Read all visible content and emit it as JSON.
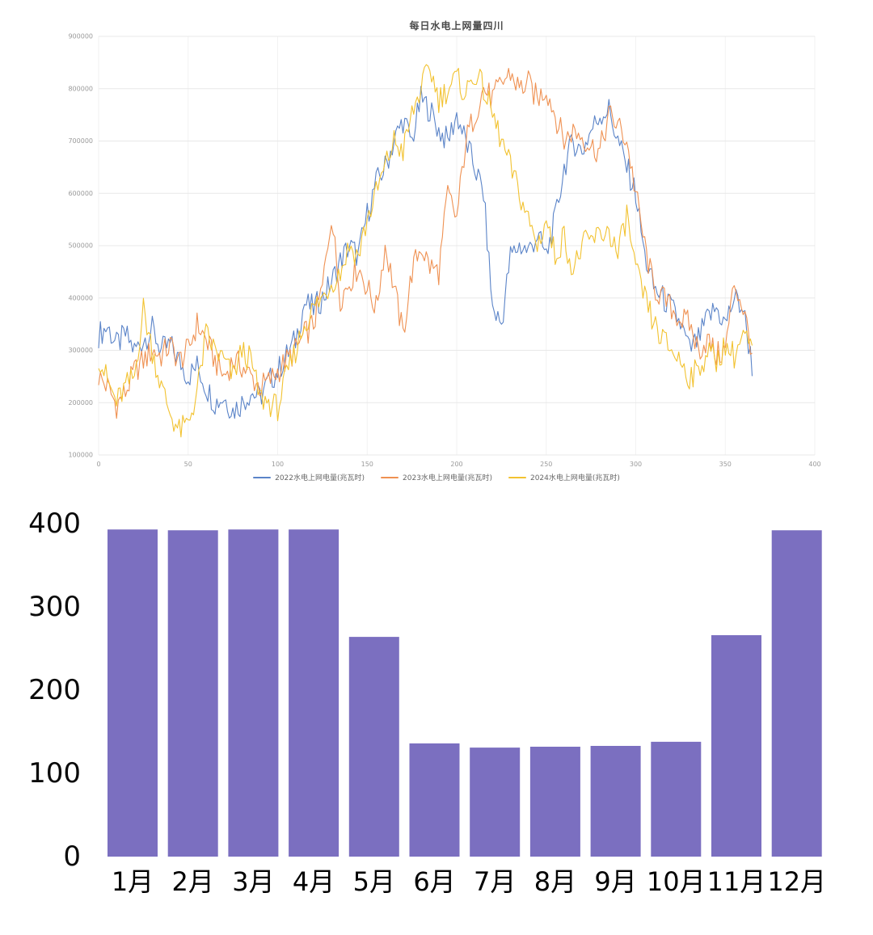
{
  "page": {
    "background": "#ffffff"
  },
  "chart_data": [
    {
      "type": "line",
      "title": "每日水电上网量四川",
      "xlabel": "",
      "ylabel": "",
      "x_range": [
        0,
        400
      ],
      "y_range": [
        100000,
        900000
      ],
      "x_ticks": [
        0,
        50,
        100,
        150,
        200,
        250,
        300,
        350,
        400
      ],
      "y_ticks": [
        100000,
        200000,
        300000,
        400000,
        500000,
        600000,
        700000,
        800000,
        900000
      ],
      "x_step_days": 5,
      "grid": true,
      "legend_position": "bottom",
      "series": [
        {
          "name": "2022水电上网电量(兆瓦时)",
          "color": "#5b84c8",
          "values": [
            330000,
            345000,
            310000,
            330000,
            300000,
            320000,
            340000,
            300000,
            310000,
            280000,
            250000,
            270000,
            230000,
            200000,
            210000,
            185000,
            200000,
            220000,
            210000,
            240000,
            260000,
            290000,
            320000,
            390000,
            380000,
            400000,
            430000,
            470000,
            500000,
            480000,
            560000,
            620000,
            650000,
            700000,
            740000,
            700000,
            780000,
            760000,
            720000,
            700000,
            750000,
            700000,
            650000,
            600000,
            380000,
            350000,
            480000,
            500000,
            490000,
            520000,
            480000,
            550000,
            650000,
            700000,
            680000,
            720000,
            750000,
            760000,
            700000,
            650000,
            600000,
            480000,
            420000,
            400000,
            380000,
            350000,
            300000,
            320000,
            360000,
            380000,
            350000,
            400000,
            380000,
            270000
          ]
        },
        {
          "name": "2023水电上网电量(兆瓦时)",
          "color": "#ef9152",
          "values": [
            250000,
            230000,
            195000,
            220000,
            260000,
            280000,
            300000,
            290000,
            310000,
            280000,
            300000,
            350000,
            320000,
            280000,
            250000,
            280000,
            270000,
            250000,
            230000,
            240000,
            260000,
            280000,
            300000,
            330000,
            350000,
            420000,
            560000,
            400000,
            430000,
            460000,
            420000,
            380000,
            500000,
            420000,
            330000,
            450000,
            500000,
            460000,
            450000,
            600000,
            550000,
            700000,
            750000,
            800000,
            780000,
            810000,
            830000,
            800000,
            810000,
            780000,
            800000,
            750000,
            700000,
            720000,
            710000,
            690000,
            680000,
            750000,
            730000,
            700000,
            600000,
            500000,
            420000,
            400000,
            380000,
            360000,
            350000,
            300000,
            320000,
            290000,
            300000,
            430000,
            380000,
            300000
          ]
        },
        {
          "name": "2024水电上网电量(兆瓦时)",
          "color": "#f2c230",
          "values": [
            290000,
            240000,
            200000,
            230000,
            250000,
            380000,
            300000,
            230000,
            180000,
            145000,
            160000,
            220000,
            330000,
            300000,
            280000,
            250000,
            300000,
            280000,
            210000,
            200000,
            190000,
            250000,
            300000,
            350000,
            380000,
            400000,
            430000,
            450000,
            500000,
            480000,
            550000,
            600000,
            650000,
            700000,
            680000,
            750000,
            800000,
            840000,
            780000,
            800000,
            820000,
            790000,
            830000,
            800000,
            750000,
            700000,
            650000,
            600000,
            550000,
            500000,
            550000,
            480000,
            520000,
            450000,
            500000,
            510000,
            520000,
            530000,
            480000,
            560000,
            450000,
            400000,
            350000,
            320000,
            300000,
            280000,
            250000,
            260000,
            300000,
            280000,
            310000,
            290000,
            330000,
            300000
          ]
        }
      ]
    },
    {
      "type": "bar",
      "title": "",
      "categories": [
        "1月",
        "2月",
        "3月",
        "4月",
        "5月",
        "6月",
        "7月",
        "8月",
        "9月",
        "10月",
        "11月",
        "12月"
      ],
      "values": [
        393,
        392,
        393,
        393,
        264,
        136,
        131,
        132,
        133,
        138,
        266,
        392
      ],
      "y_ticks": [
        0,
        100,
        200,
        300,
        400
      ],
      "ylim": [
        0,
        420
      ],
      "bar_color": "#7b6fc0",
      "grid": false,
      "legend_position": "none"
    }
  ]
}
